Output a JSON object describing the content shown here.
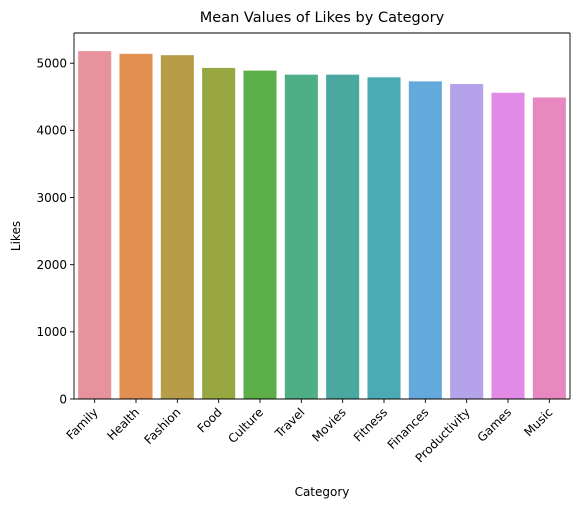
{
  "chart_data": {
    "type": "bar",
    "title": "Mean Values of Likes by Category",
    "xlabel": "Category",
    "ylabel": "Likes",
    "ylim": [
      0,
      5450
    ],
    "yticks": [
      0,
      1000,
      2000,
      3000,
      4000,
      5000
    ],
    "grid": false,
    "categories": [
      "Family",
      "Health",
      "Fashion",
      "Food",
      "Culture",
      "Travel",
      "Movies",
      "Fitness",
      "Finances",
      "Productivity",
      "Games",
      "Music"
    ],
    "values": [
      5180,
      5140,
      5120,
      4930,
      4890,
      4830,
      4830,
      4790,
      4730,
      4690,
      4560,
      4490
    ],
    "colors": [
      "#E8929E",
      "#E28F52",
      "#B89D48",
      "#98A741",
      "#5BAE48",
      "#4EAE85",
      "#4AA8A0",
      "#4CAAB5",
      "#64A9DC",
      "#B4A3EA",
      "#E18BE7",
      "#E788C0"
    ]
  }
}
